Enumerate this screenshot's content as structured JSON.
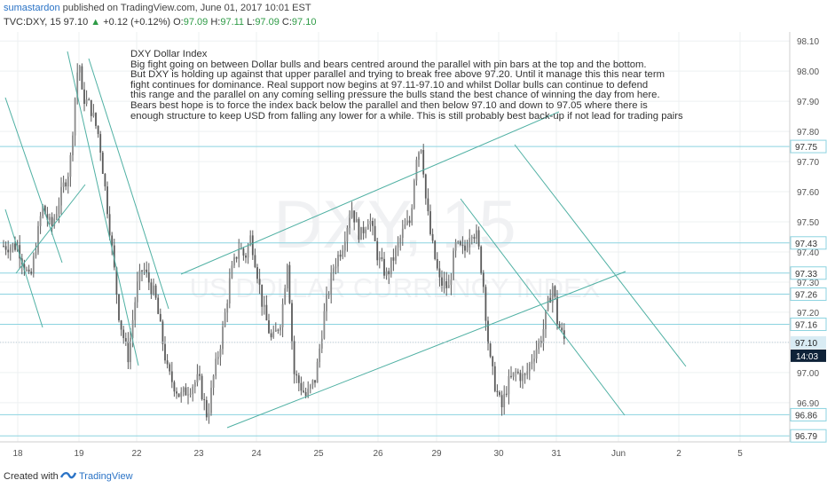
{
  "header": {
    "author": "sumastardon",
    "published_text": "published on TradingView.com, June 01, 2017 10:01 EST",
    "symbol_line": "TVC:DXY, 15",
    "last": "97.10",
    "change": "+0.12 (+0.12%)",
    "ohlc": {
      "O": "97.09",
      "H": "97.11",
      "L": "97.09",
      "C": "97.10"
    }
  },
  "watermark": {
    "main": "DXY, 15",
    "sub": "US DOLLAR CURRENCY INDEX"
  },
  "annotation": {
    "title": "DXY Dollar Index",
    "lines": [
      "Big fight going on between Dollar bulls and bears centred around the parallel with pin bars at the top and the bottom.",
      "But DXY is holding up against that upper parallel and trying to break free above 97.20. Until it manage this this near term",
      "fight continues for dominance. Real support now begins at 97.11-97.10 and whilst Dollar bulls can continue to defend",
      "this range and the parallel on any coming selling pressure the bulls stand the best chance of winning the day from here.",
      "Bears best hope is to force the index back below the parallel and then below 97.10 and down to 97.05 where there is",
      "enough structure to keep USD from falling any lower for a while. This is still probably best back-up if not lead for trading pairs"
    ]
  },
  "footer": {
    "created_with": "Created with",
    "brand": "TradingView"
  },
  "colors": {
    "candle": "#5a5a5a",
    "lines": "#4fb0a3",
    "hlines": "#8cd3e0",
    "last_label": "#d9ecf4",
    "countdown_bg": "#0e2238"
  },
  "chart_data": {
    "type": "candlestick",
    "x_ticks": [
      "18",
      "19",
      "22",
      "23",
      "24",
      "25",
      "26",
      "29",
      "30",
      "31",
      "Jun",
      "2",
      "5"
    ],
    "y_ticks": [
      "96.90",
      "97.00",
      "97.10",
      "97.20",
      "97.30",
      "97.40",
      "97.50",
      "97.60",
      "97.70",
      "97.80",
      "97.90",
      "98.00",
      "98.10"
    ],
    "ylim": [
      96.77,
      98.13
    ],
    "levels": [
      "97.75",
      "97.43",
      "97.33",
      "97.26",
      "97.16",
      "96.86",
      "96.79"
    ],
    "last_price_label": "97.10",
    "countdown": "14:03",
    "price_path": [
      [
        0.0,
        97.42
      ],
      [
        0.2,
        97.3
      ],
      [
        0.4,
        97.55
      ],
      [
        0.55,
        97.48
      ],
      [
        0.75,
        97.62
      ],
      [
        0.85,
        97.68
      ],
      [
        0.95,
        97.95
      ],
      [
        1.0,
        98.05
      ],
      [
        1.05,
        97.92
      ],
      [
        1.2,
        97.88
      ],
      [
        1.35,
        97.78
      ],
      [
        1.55,
        97.45
      ],
      [
        1.7,
        97.18
      ],
      [
        1.85,
        97.05
      ],
      [
        2.0,
        97.28
      ],
      [
        2.1,
        97.35
      ],
      [
        2.3,
        97.25
      ],
      [
        2.5,
        97.0
      ],
      [
        2.7,
        96.92
      ],
      [
        2.85,
        96.95
      ],
      [
        3.0,
        96.98
      ],
      [
        3.15,
        96.85
      ],
      [
        3.25,
        96.98
      ],
      [
        3.4,
        97.12
      ],
      [
        3.55,
        97.32
      ],
      [
        3.7,
        97.42
      ],
      [
        3.8,
        97.38
      ],
      [
        3.9,
        97.45
      ],
      [
        4.0,
        97.35
      ],
      [
        4.1,
        97.22
      ],
      [
        4.25,
        97.1
      ],
      [
        4.4,
        97.18
      ],
      [
        4.5,
        97.38
      ],
      [
        4.6,
        97.0
      ],
      [
        4.8,
        96.92
      ],
      [
        4.95,
        96.98
      ],
      [
        5.1,
        97.2
      ],
      [
        5.25,
        97.35
      ],
      [
        5.4,
        97.42
      ],
      [
        5.55,
        97.55
      ],
      [
        5.7,
        97.45
      ],
      [
        5.85,
        97.52
      ],
      [
        6.0,
        97.38
      ],
      [
        6.15,
        97.32
      ],
      [
        6.3,
        97.4
      ],
      [
        6.45,
        97.48
      ],
      [
        6.55,
        97.5
      ],
      [
        6.65,
        97.72
      ],
      [
        6.75,
        97.76
      ],
      [
        6.8,
        97.6
      ],
      [
        6.9,
        97.45
      ],
      [
        7.05,
        97.3
      ],
      [
        7.2,
        97.28
      ],
      [
        7.3,
        97.42
      ],
      [
        7.45,
        97.4
      ],
      [
        7.55,
        97.48
      ],
      [
        7.65,
        97.45
      ],
      [
        7.75,
        97.3
      ],
      [
        7.85,
        97.05
      ],
      [
        7.95,
        96.95
      ],
      [
        8.05,
        96.88
      ],
      [
        8.15,
        96.96
      ],
      [
        8.3,
        97.0
      ],
      [
        8.45,
        96.98
      ],
      [
        8.6,
        97.06
      ],
      [
        8.75,
        97.12
      ],
      [
        8.85,
        97.22
      ],
      [
        8.95,
        97.3
      ],
      [
        9.0,
        97.18
      ],
      [
        9.1,
        97.12
      ],
      [
        9.15,
        97.1
      ]
    ]
  }
}
